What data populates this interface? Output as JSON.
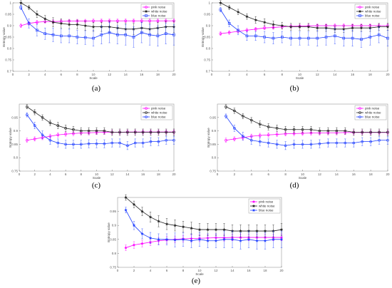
{
  "figure": {
    "panel_labels": [
      "(a)",
      "(b)",
      "(c)",
      "(d)",
      "(e)"
    ]
  },
  "chart_data": [
    {
      "type": "line",
      "panel": "(a)",
      "xlabel": "Scale",
      "ylabel": "Entropy value",
      "xlim": [
        0,
        20
      ],
      "ylim": [
        0.7,
        1.0
      ],
      "xticks": [
        0,
        2,
        4,
        6,
        8,
        10,
        12,
        14,
        16,
        18,
        20
      ],
      "yticks": [
        0.7,
        0.75,
        0.8,
        0.85,
        0.9,
        0.95,
        1.0
      ],
      "ytick_labels": [
        "0.7",
        "0.75",
        "0.8",
        "0.85",
        "0.9",
        "0.95",
        "1"
      ],
      "legend": "top-right",
      "grid": false,
      "x": [
        1,
        2,
        3,
        4,
        5,
        6,
        7,
        8,
        9,
        10,
        11,
        12,
        13,
        14,
        15,
        16,
        17,
        18,
        19,
        20
      ],
      "series": [
        {
          "name": "pink noise",
          "color": "#ff00ff",
          "marker": "circle",
          "values": [
            0.9,
            0.91,
            0.915,
            0.918,
            0.918,
            0.919,
            0.92,
            0.92,
            0.92,
            0.921,
            0.921,
            0.921,
            0.921,
            0.921,
            0.921,
            0.921,
            0.921,
            0.921,
            0.921,
            0.921
          ],
          "err": [
            0.008,
            0.008,
            0.008,
            0.008,
            0.008,
            0.008,
            0.008,
            0.008,
            0.008,
            0.008,
            0.008,
            0.008,
            0.008,
            0.008,
            0.008,
            0.008,
            0.008,
            0.008,
            0.008,
            0.008
          ]
        },
        {
          "name": "white noise",
          "color": "#222222",
          "marker": "star",
          "values": [
            1.0,
            0.98,
            0.95,
            0.93,
            0.915,
            0.91,
            0.905,
            0.905,
            0.9,
            0.895,
            0.895,
            0.895,
            0.89,
            0.885,
            0.885,
            0.89,
            0.885,
            0.89,
            0.895,
            0.895
          ],
          "err": [
            0.01,
            0.01,
            0.015,
            0.015,
            0.02,
            0.02,
            0.02,
            0.02,
            0.02,
            0.02,
            0.02,
            0.025,
            0.025,
            0.025,
            0.025,
            0.025,
            0.025,
            0.025,
            0.025,
            0.025
          ]
        },
        {
          "name": "blue noise",
          "color": "#1f3fff",
          "marker": "square",
          "values": [
            0.98,
            0.91,
            0.88,
            0.865,
            0.86,
            0.855,
            0.855,
            0.85,
            0.848,
            0.845,
            0.86,
            0.87,
            0.86,
            0.86,
            0.85,
            0.87,
            0.86,
            0.855,
            0.865,
            0.86
          ],
          "err": [
            0.01,
            0.02,
            0.025,
            0.025,
            0.03,
            0.03,
            0.03,
            0.03,
            0.03,
            0.035,
            0.04,
            0.045,
            0.04,
            0.045,
            0.045,
            0.045,
            0.045,
            0.045,
            0.045,
            0.045
          ]
        }
      ]
    },
    {
      "type": "line",
      "panel": "(b)",
      "xlabel": "Scale",
      "ylabel": "Entropy value",
      "xlim": [
        0,
        20
      ],
      "ylim": [
        0.7,
        1.0
      ],
      "xticks": [
        0,
        2,
        4,
        6,
        8,
        10,
        12,
        14,
        16,
        18,
        20
      ],
      "yticks": [
        0.7,
        0.75,
        0.8,
        0.85,
        0.9,
        0.95,
        1.0
      ],
      "ytick_labels": [
        "0.7",
        "0.75",
        "0.8",
        "0.85",
        "0.9",
        "0.95",
        "1"
      ],
      "legend": "top-right",
      "grid": false,
      "x": [
        1,
        2,
        3,
        4,
        5,
        6,
        7,
        8,
        9,
        10,
        11,
        12,
        13,
        14,
        15,
        16,
        17,
        18,
        19,
        20
      ],
      "series": [
        {
          "name": "pink noise",
          "color": "#ff00ff",
          "marker": "circle",
          "values": [
            0.865,
            0.87,
            0.875,
            0.88,
            0.885,
            0.89,
            0.892,
            0.895,
            0.897,
            0.898,
            0.899,
            0.9,
            0.9,
            0.9,
            0.9,
            0.9,
            0.9,
            0.9,
            0.9,
            0.9
          ],
          "err": [
            0.008,
            0.008,
            0.008,
            0.008,
            0.008,
            0.008,
            0.008,
            0.008,
            0.008,
            0.008,
            0.008,
            0.008,
            0.008,
            0.008,
            0.008,
            0.008,
            0.008,
            0.008,
            0.008,
            0.008
          ]
        },
        {
          "name": "white noise",
          "color": "#222222",
          "marker": "star",
          "values": [
            1.0,
            0.98,
            0.96,
            0.94,
            0.925,
            0.915,
            0.905,
            0.9,
            0.895,
            0.895,
            0.895,
            0.89,
            0.89,
            0.885,
            0.885,
            0.89,
            0.89,
            0.89,
            0.895,
            0.895
          ],
          "err": [
            0.01,
            0.01,
            0.012,
            0.012,
            0.015,
            0.015,
            0.015,
            0.015,
            0.015,
            0.015,
            0.015,
            0.015,
            0.015,
            0.015,
            0.015,
            0.015,
            0.015,
            0.015,
            0.015,
            0.015
          ]
        },
        {
          "name": "blue noise",
          "color": "#1f3fff",
          "marker": "square",
          "values": [
            0.97,
            0.91,
            0.88,
            0.855,
            0.855,
            0.85,
            0.845,
            0.85,
            0.845,
            0.845,
            0.845,
            0.845,
            0.85,
            0.855,
            0.845,
            0.845,
            0.84,
            0.85,
            0.86,
            0.845
          ],
          "err": [
            0.01,
            0.015,
            0.02,
            0.02,
            0.02,
            0.025,
            0.025,
            0.025,
            0.03,
            0.03,
            0.03,
            0.035,
            0.035,
            0.035,
            0.035,
            0.035,
            0.035,
            0.035,
            0.035,
            0.035
          ]
        }
      ]
    },
    {
      "type": "line",
      "panel": "(c)",
      "xlabel": "Scale",
      "ylabel": "Entropy value",
      "xlim": [
        0,
        20
      ],
      "ylim": [
        0.75,
        1.0
      ],
      "xticks": [
        0,
        2,
        4,
        6,
        8,
        10,
        12,
        14,
        16,
        18,
        20
      ],
      "yticks": [
        0.75,
        0.8,
        0.85,
        0.9,
        0.95
      ],
      "ytick_labels": [
        "0.75",
        "0.8",
        "0.85",
        "0.9",
        "0.95"
      ],
      "legend": "top-right",
      "grid": false,
      "x": [
        1,
        2,
        3,
        4,
        5,
        6,
        7,
        8,
        9,
        10,
        11,
        12,
        13,
        14,
        15,
        16,
        17,
        18,
        19,
        20
      ],
      "series": [
        {
          "name": "pink noise",
          "color": "#ff00ff",
          "marker": "circle",
          "values": [
            0.865,
            0.87,
            0.875,
            0.88,
            0.885,
            0.888,
            0.89,
            0.892,
            0.893,
            0.894,
            0.895,
            0.895,
            0.895,
            0.896,
            0.896,
            0.896,
            0.896,
            0.896,
            0.896,
            0.896
          ],
          "err": [
            0.008,
            0.008,
            0.008,
            0.008,
            0.008,
            0.008,
            0.008,
            0.008,
            0.008,
            0.008,
            0.008,
            0.008,
            0.008,
            0.008,
            0.008,
            0.008,
            0.008,
            0.008,
            0.008,
            0.008
          ]
        },
        {
          "name": "white noise",
          "color": "#222222",
          "marker": "circle",
          "values": [
            0.99,
            0.97,
            0.95,
            0.93,
            0.92,
            0.91,
            0.905,
            0.9,
            0.9,
            0.9,
            0.9,
            0.895,
            0.895,
            0.895,
            0.895,
            0.895,
            0.895,
            0.895,
            0.895,
            0.895
          ],
          "err": [
            0.008,
            0.01,
            0.01,
            0.01,
            0.012,
            0.012,
            0.012,
            0.012,
            0.012,
            0.012,
            0.012,
            0.012,
            0.012,
            0.012,
            0.012,
            0.012,
            0.012,
            0.012,
            0.012,
            0.012
          ]
        },
        {
          "name": "blue noise",
          "color": "#1f3fff",
          "marker": "circle",
          "values": [
            0.96,
            0.92,
            0.885,
            0.865,
            0.855,
            0.85,
            0.85,
            0.85,
            0.852,
            0.852,
            0.852,
            0.855,
            0.855,
            0.845,
            0.855,
            0.855,
            0.86,
            0.86,
            0.865,
            0.865
          ],
          "err": [
            0.008,
            0.012,
            0.015,
            0.015,
            0.015,
            0.015,
            0.015,
            0.015,
            0.015,
            0.015,
            0.015,
            0.015,
            0.015,
            0.015,
            0.015,
            0.015,
            0.015,
            0.015,
            0.015,
            0.015
          ]
        }
      ]
    },
    {
      "type": "line",
      "panel": "(d)",
      "xlabel": "Scale",
      "ylabel": "Entropy value",
      "xlim": [
        0,
        20
      ],
      "ylim": [
        0.75,
        1.0
      ],
      "xticks": [
        0,
        2,
        4,
        6,
        8,
        10,
        12,
        14,
        16,
        18,
        20
      ],
      "yticks": [
        0.75,
        0.8,
        0.85,
        0.9,
        0.95
      ],
      "ytick_labels": [
        "0.75",
        "0.8",
        "0.85",
        "0.9",
        "0.95"
      ],
      "legend": "top-right",
      "grid": false,
      "x": [
        1,
        2,
        3,
        4,
        5,
        6,
        7,
        8,
        9,
        10,
        11,
        12,
        13,
        14,
        15,
        16,
        17,
        18,
        19,
        20
      ],
      "series": [
        {
          "name": "pink noise",
          "color": "#ff00ff",
          "marker": "circle",
          "values": [
            0.865,
            0.87,
            0.875,
            0.88,
            0.883,
            0.885,
            0.887,
            0.889,
            0.89,
            0.891,
            0.892,
            0.892,
            0.893,
            0.893,
            0.894,
            0.894,
            0.894,
            0.894,
            0.894,
            0.894
          ],
          "err": [
            0.008,
            0.008,
            0.008,
            0.008,
            0.008,
            0.008,
            0.008,
            0.008,
            0.008,
            0.008,
            0.008,
            0.008,
            0.008,
            0.008,
            0.008,
            0.008,
            0.008,
            0.008,
            0.008,
            0.008
          ]
        },
        {
          "name": "white noise",
          "color": "#222222",
          "marker": "circle",
          "values": [
            0.99,
            0.975,
            0.955,
            0.94,
            0.925,
            0.915,
            0.91,
            0.905,
            0.905,
            0.905,
            0.905,
            0.9,
            0.9,
            0.9,
            0.9,
            0.895,
            0.895,
            0.895,
            0.895,
            0.895
          ],
          "err": [
            0.008,
            0.01,
            0.01,
            0.01,
            0.012,
            0.012,
            0.012,
            0.012,
            0.012,
            0.012,
            0.012,
            0.012,
            0.012,
            0.012,
            0.012,
            0.012,
            0.012,
            0.012,
            0.012,
            0.012
          ]
        },
        {
          "name": "blue noise",
          "color": "#1f3fff",
          "marker": "circle",
          "values": [
            0.955,
            0.91,
            0.88,
            0.865,
            0.86,
            0.855,
            0.85,
            0.845,
            0.85,
            0.85,
            0.85,
            0.852,
            0.855,
            0.855,
            0.855,
            0.855,
            0.86,
            0.86,
            0.865,
            0.865
          ],
          "err": [
            0.008,
            0.012,
            0.015,
            0.015,
            0.015,
            0.015,
            0.015,
            0.015,
            0.015,
            0.015,
            0.015,
            0.015,
            0.015,
            0.015,
            0.015,
            0.015,
            0.015,
            0.015,
            0.015,
            0.015
          ]
        }
      ]
    },
    {
      "type": "line",
      "panel": "(e)",
      "xlabel": "Scale",
      "ylabel": "Entropy value",
      "xlim": [
        0,
        20
      ],
      "ylim": [
        0.75,
        1.0
      ],
      "xticks": [
        0,
        2,
        4,
        6,
        8,
        10,
        12,
        14,
        16,
        18,
        20
      ],
      "yticks": [
        0.75,
        0.8,
        0.85,
        0.9,
        0.95
      ],
      "ytick_labels": [
        "0.75",
        "0.8",
        "0.85",
        "0.9",
        "0.95"
      ],
      "legend": "top-right",
      "grid": false,
      "x": [
        1,
        2,
        3,
        4,
        5,
        6,
        7,
        8,
        9,
        10,
        11,
        12,
        13,
        14,
        15,
        16,
        17,
        18,
        19,
        20
      ],
      "series": [
        {
          "name": "pink noise",
          "color": "#ff00ff",
          "marker": "star",
          "values": [
            0.82,
            0.83,
            0.835,
            0.84,
            0.845,
            0.848,
            0.85,
            0.852,
            0.853,
            0.854,
            0.855,
            0.856,
            0.856,
            0.857,
            0.857,
            0.857,
            0.857,
            0.857,
            0.857,
            0.857
          ],
          "err": [
            0.01,
            0.012,
            0.012,
            0.012,
            0.012,
            0.012,
            0.012,
            0.012,
            0.012,
            0.012,
            0.012,
            0.012,
            0.012,
            0.012,
            0.012,
            0.012,
            0.012,
            0.012,
            0.012,
            0.012
          ]
        },
        {
          "name": "white noise",
          "color": "#222222",
          "marker": "star",
          "values": [
            1.0,
            0.975,
            0.95,
            0.93,
            0.915,
            0.905,
            0.9,
            0.895,
            0.89,
            0.885,
            0.885,
            0.885,
            0.885,
            0.88,
            0.88,
            0.88,
            0.88,
            0.88,
            0.88,
            0.885
          ],
          "err": [
            0.01,
            0.012,
            0.015,
            0.018,
            0.02,
            0.02,
            0.02,
            0.02,
            0.022,
            0.022,
            0.022,
            0.022,
            0.022,
            0.022,
            0.022,
            0.022,
            0.022,
            0.022,
            0.022,
            0.022
          ]
        },
        {
          "name": "blue noise",
          "color": "#1f3fff",
          "marker": "star",
          "values": [
            0.955,
            0.9,
            0.87,
            0.855,
            0.85,
            0.85,
            0.848,
            0.85,
            0.845,
            0.85,
            0.845,
            0.845,
            0.85,
            0.85,
            0.845,
            0.85,
            0.845,
            0.845,
            0.85,
            0.85
          ],
          "err": [
            0.01,
            0.015,
            0.018,
            0.02,
            0.02,
            0.02,
            0.025,
            0.025,
            0.025,
            0.025,
            0.025,
            0.025,
            0.03,
            0.03,
            0.03,
            0.03,
            0.03,
            0.03,
            0.03,
            0.03
          ]
        }
      ]
    }
  ]
}
